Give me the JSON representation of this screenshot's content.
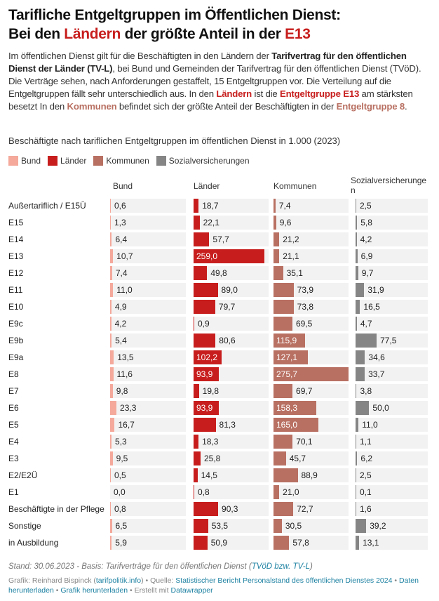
{
  "header": {
    "title_line1": "Tarifliche Entgeltgruppen im Öffentlichen Dienst:",
    "title_line2_a": "Bei den ",
    "title_line2_b": "Ländern",
    "title_line2_c": " der größte Anteil in der ",
    "title_line2_d": "E13"
  },
  "description": {
    "p1": "Im öffentlichen Dienst gilt für die Beschäftigten in den Ländern der ",
    "b1": "Tarifvertrag für den öffentlichen Dienst der Länder (TV-L)",
    "p2": ", bei Bund und Gemeinden der Tarifvertrag für den öffentlichen Dienst (TVöD). Die Verträge sehen, nach Anforderungen gestaffelt, 15 Entgeltgruppen vor. Die Verteilung auf die Entgeltgruppen fällt sehr unterschiedlich aus. In den ",
    "r1": "Ländern",
    "p3": " ist die ",
    "r2": "Entgeltgruppe E13",
    "p4": " am stärksten besetzt In den ",
    "k1": "Kommunen",
    "p5": " befindet sich der größte Anteil der Beschäftigten in der ",
    "k2": "Entgeltgruppe 8",
    "p6": "."
  },
  "footer": {
    "stand": "Stand: 30.06.2023 - Basis: Tarifverträge für den öffentlichen Dienst (",
    "stand_link": "TVöD bzw. TV-L",
    "stand_end": ")",
    "grafik": "Grafik: Reinhard Bispinck (",
    "grafik_link": "tarifpolitik.info",
    "quelle": ") • Quelle: ",
    "quelle_link": "Statistischer Bericht Personalstand des öffentlichen Dienstes 2024",
    "sep1": " • ",
    "daten_link": "Daten herunterladen",
    "sep2": " • ",
    "grafik_dl_link": "Grafik herunterladen",
    "erstellt": " • Erstellt mit ",
    "dw_link": "Datawrapper"
  },
  "chart_data": {
    "type": "bar",
    "title": "Beschäftigte nach tariflichen Entgeltgruppen im öffentlichen Dienst in 1.000 (2023)",
    "legend_position": "top-left",
    "categories": [
      "Außertariflich / E15Ü",
      "E15",
      "E14",
      "E13",
      "E12",
      "E11",
      "E10",
      "E9c",
      "E9b",
      "E9a",
      "E8",
      "E7",
      "E6",
      "E5",
      "E4",
      "E3",
      "E2/E2Ü",
      "E1",
      "Beschäftigte in der Pflege",
      "Sonstige",
      "in Ausbildung"
    ],
    "series": [
      {
        "name": "Bund",
        "color": "#f4a99b",
        "values": [
          0.6,
          1.3,
          6.4,
          10.7,
          7.4,
          11.0,
          4.9,
          4.2,
          5.4,
          13.5,
          11.6,
          9.8,
          23.3,
          16.7,
          5.3,
          9.5,
          0.5,
          0.0,
          0.8,
          6.5,
          5.9
        ]
      },
      {
        "name": "Länder",
        "color": "#c71e1d",
        "values": [
          18.7,
          22.1,
          57.7,
          259.0,
          49.8,
          89.0,
          79.7,
          0.9,
          80.6,
          102.2,
          93.9,
          19.8,
          93.9,
          81.3,
          18.3,
          25.8,
          14.5,
          0.8,
          90.3,
          53.5,
          50.9
        ]
      },
      {
        "name": "Kommunen",
        "color": "#b87062",
        "values": [
          7.4,
          9.6,
          21.2,
          21.1,
          35.1,
          73.9,
          73.8,
          69.5,
          115.9,
          127.1,
          275.7,
          69.7,
          158.3,
          165.0,
          70.1,
          45.7,
          88.9,
          21.0,
          72.7,
          30.5,
          57.8
        ]
      },
      {
        "name": "Sozialversicherungen",
        "color": "#858585",
        "values": [
          2.5,
          5.8,
          4.2,
          6.9,
          9.7,
          31.9,
          16.5,
          4.7,
          77.5,
          34.6,
          33.7,
          3.8,
          50.0,
          11.0,
          1.1,
          6.2,
          2.5,
          0.1,
          1.6,
          39.2,
          13.1
        ]
      }
    ],
    "column_headers": [
      "Bund",
      "Länder",
      "Kommunen",
      "Sozialversicherunge\nn"
    ],
    "xlim": [
      0,
      275.7
    ]
  }
}
